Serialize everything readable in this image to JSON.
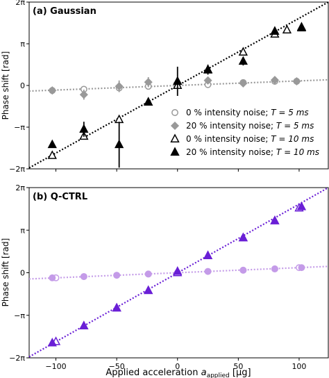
{
  "chart_data": [
    {
      "type": "scatter",
      "panel_label": "(a) Gaussian",
      "ylabel": "Phase shift [rad]",
      "ylim_pi": [
        -2,
        2
      ],
      "xlim": [
        -122,
        124
      ],
      "yticks": [
        {
          "v": -2,
          "label": "−2π"
        },
        {
          "v": -1,
          "label": "−π"
        },
        {
          "v": 0,
          "label": "0"
        },
        {
          "v": 1,
          "label": "π"
        },
        {
          "v": 2,
          "label": "2π"
        }
      ],
      "legend_position": "lower-right",
      "series": [
        {
          "name": "0 % intensity noise; T = 5 ms",
          "legend_label": "0 % intensity noise; ",
          "legend_T": "T = 5 ms",
          "marker": "circle-open",
          "color": "#999999",
          "x": [
            -103,
            -77,
            -48,
            -24,
            0,
            25,
            54,
            80,
            98
          ],
          "y": [
            -0.12,
            -0.09,
            -0.06,
            -0.02,
            0.0,
            0.02,
            0.07,
            0.1,
            0.1
          ],
          "err": [
            0.03,
            0.03,
            0.03,
            0.03,
            0.03,
            0.03,
            0.04,
            0.04,
            0.03
          ]
        },
        {
          "name": "20 % intensity noise; T = 5 ms",
          "legend_label": "20 % intensity noise; ",
          "legend_T": "T = 5 ms",
          "marker": "diamond-filled",
          "color": "#999999",
          "x": [
            -103,
            -77,
            -48,
            -24,
            0,
            25,
            54,
            80,
            98
          ],
          "y": [
            -0.12,
            -0.22,
            -0.02,
            0.08,
            0.06,
            0.12,
            0.05,
            0.13,
            0.1
          ],
          "err": [
            0.05,
            0.12,
            0.14,
            0.12,
            0.08,
            0.06,
            0.06,
            0.08,
            0.04
          ]
        },
        {
          "name": "0 % intensity noise; T = 10 ms",
          "legend_label": "0 % intensity noise; ",
          "legend_T": "T = 10 ms",
          "marker": "triangle-open",
          "color": "#000000",
          "x": [
            -103,
            -77,
            -48,
            -24,
            0,
            25,
            54,
            80,
            90,
            102
          ],
          "y": [
            -1.68,
            -1.22,
            -0.82,
            -0.4,
            0.0,
            0.37,
            0.8,
            1.23,
            1.33,
            1.4
          ],
          "err": [
            0.05,
            0.05,
            0.05,
            0.05,
            0.05,
            0.05,
            0.05,
            0.05,
            0.05,
            0.05
          ]
        },
        {
          "name": "20 % intensity noise; T = 10 ms",
          "legend_label": "20 % intensity noise; ",
          "legend_T": "T = 10 ms",
          "marker": "triangle-filled",
          "color": "#000000",
          "x": [
            -103,
            -77,
            -48,
            -24,
            0,
            25,
            54,
            80,
            102
          ],
          "y": [
            -1.42,
            -1.05,
            -1.42,
            -0.4,
            0.1,
            0.38,
            0.58,
            1.3,
            1.38
          ],
          "err": [
            0.08,
            0.18,
            0.55,
            0.05,
            0.35,
            0.12,
            0.1,
            0.06,
            0.06
          ]
        }
      ],
      "fits": [
        {
          "color": "#999999",
          "slope": 0.0011,
          "intercept": 0.0
        },
        {
          "color": "#000000",
          "slope": 0.0162,
          "intercept": 0.0
        }
      ]
    },
    {
      "type": "scatter",
      "panel_label": "(b) Q-CTRL",
      "ylabel": "Phase shift [rad]",
      "xlabel": "Applied acceleration ",
      "xlabel_symbol": "a",
      "xlabel_sub": "applied",
      "xlabel_unit": " [μg]",
      "ylim_pi": [
        -2,
        2
      ],
      "xlim": [
        -122,
        124
      ],
      "xticks": [
        {
          "v": -100,
          "label": "−100"
        },
        {
          "v": -50,
          "label": "−50"
        },
        {
          "v": 0,
          "label": "0"
        },
        {
          "v": 50,
          "label": "50"
        },
        {
          "v": 100,
          "label": "100"
        }
      ],
      "yticks": [
        {
          "v": -2,
          "label": "−2π"
        },
        {
          "v": -1,
          "label": "−π"
        },
        {
          "v": 0,
          "label": "0"
        },
        {
          "v": 1,
          "label": "π"
        },
        {
          "v": 2,
          "label": "2π"
        }
      ],
      "series": [
        {
          "marker": "circle-open",
          "color": "#c49be8",
          "x": [
            -100,
            -77,
            -50,
            -24,
            0,
            25,
            54,
            80,
            100
          ],
          "y": [
            -0.12,
            -0.09,
            -0.06,
            -0.03,
            0.0,
            0.03,
            0.06,
            0.09,
            0.12
          ],
          "err": [
            0.02,
            0.02,
            0.02,
            0.02,
            0.02,
            0.02,
            0.02,
            0.02,
            0.02
          ]
        },
        {
          "marker": "circle-filled",
          "color": "#c49be8",
          "x": [
            -103,
            -77,
            -50,
            -24,
            0,
            25,
            54,
            80,
            102
          ],
          "y": [
            -0.12,
            -0.09,
            -0.06,
            -0.03,
            0.0,
            0.03,
            0.06,
            0.09,
            0.12
          ],
          "err": [
            0.02,
            0.02,
            0.02,
            0.02,
            0.02,
            0.02,
            0.02,
            0.02,
            0.02
          ]
        },
        {
          "marker": "triangle-open",
          "color": "#6a1fd6",
          "x": [
            -100,
            -77,
            -50,
            -24,
            0,
            25,
            54,
            80,
            100
          ],
          "y": [
            -1.62,
            -1.25,
            -0.83,
            -0.42,
            0.0,
            0.4,
            0.82,
            1.22,
            1.52
          ],
          "err": [
            0.03,
            0.03,
            0.03,
            0.03,
            0.03,
            0.03,
            0.03,
            0.03,
            0.03
          ]
        },
        {
          "marker": "triangle-filled",
          "color": "#6a1fd6",
          "x": [
            -103,
            -77,
            -50,
            -24,
            0,
            25,
            54,
            80,
            102
          ],
          "y": [
            -1.65,
            -1.25,
            -0.83,
            -0.42,
            0.03,
            0.4,
            0.82,
            1.22,
            1.55
          ],
          "err": [
            0.03,
            0.03,
            0.03,
            0.03,
            0.03,
            0.03,
            0.03,
            0.03,
            0.03
          ]
        }
      ],
      "fits": [
        {
          "color": "#c49be8",
          "slope": 0.0012,
          "intercept": 0.0
        },
        {
          "color": "#6a1fd6",
          "slope": 0.0162,
          "intercept": 0.0
        }
      ]
    }
  ]
}
